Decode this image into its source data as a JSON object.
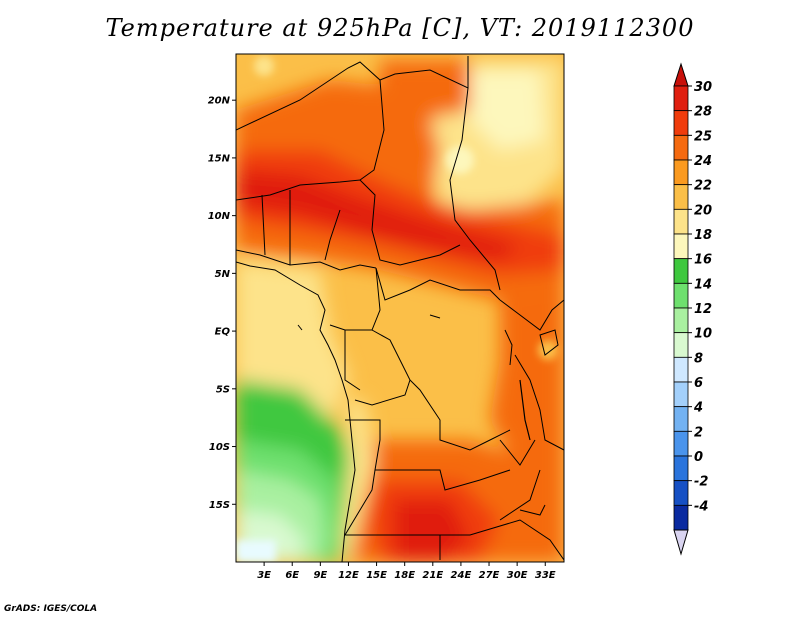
{
  "title": "Temperature at 925hPa [C], VT: 2019112300",
  "credit": "GrADS: IGES/COLA",
  "map": {
    "lon_range": [
      0,
      35
    ],
    "lat_range": [
      -20,
      24
    ],
    "lat_ticks": [
      {
        "lat": 20,
        "label": "20N"
      },
      {
        "lat": 15,
        "label": "15N"
      },
      {
        "lat": 10,
        "label": "10N"
      },
      {
        "lat": 5,
        "label": "5N"
      },
      {
        "lat": 0,
        "label": "EQ"
      },
      {
        "lat": -5,
        "label": "5S"
      },
      {
        "lat": -10,
        "label": "10S"
      },
      {
        "lat": -15,
        "label": "15S"
      }
    ],
    "lon_ticks": [
      {
        "lon": 3,
        "label": "3E"
      },
      {
        "lon": 6,
        "label": "6E"
      },
      {
        "lon": 9,
        "label": "9E"
      },
      {
        "lon": 12,
        "label": "12E"
      },
      {
        "lon": 15,
        "label": "15E"
      },
      {
        "lon": 18,
        "label": "18E"
      },
      {
        "lon": 21,
        "label": "21E"
      },
      {
        "lon": 24,
        "label": "24E"
      },
      {
        "lon": 27,
        "label": "27E"
      },
      {
        "lon": 30,
        "label": "30E"
      },
      {
        "lon": 33,
        "label": "33E"
      }
    ]
  },
  "colorbar": {
    "labels": [
      "30",
      "28",
      "25",
      "24",
      "22",
      "20",
      "18",
      "16",
      "14",
      "12",
      "10",
      "8",
      "6",
      "4",
      "2",
      "0",
      "-2",
      "-4"
    ],
    "colors": [
      "#e01f10",
      "#f03c0c",
      "#f56a10",
      "#fa9a20",
      "#fbbf48",
      "#fde38a",
      "#fdf7bc",
      "#3fc83f",
      "#6ee06e",
      "#a9f0a0",
      "#d9f9d0",
      "#cfe8ff",
      "#a3d0fb",
      "#73b2f2",
      "#4a94ec",
      "#2a74dc",
      "#1650c4",
      "#0a2aa0"
    ],
    "top_color": "#c8100a",
    "bottom_color": "#d9d4f0"
  }
}
